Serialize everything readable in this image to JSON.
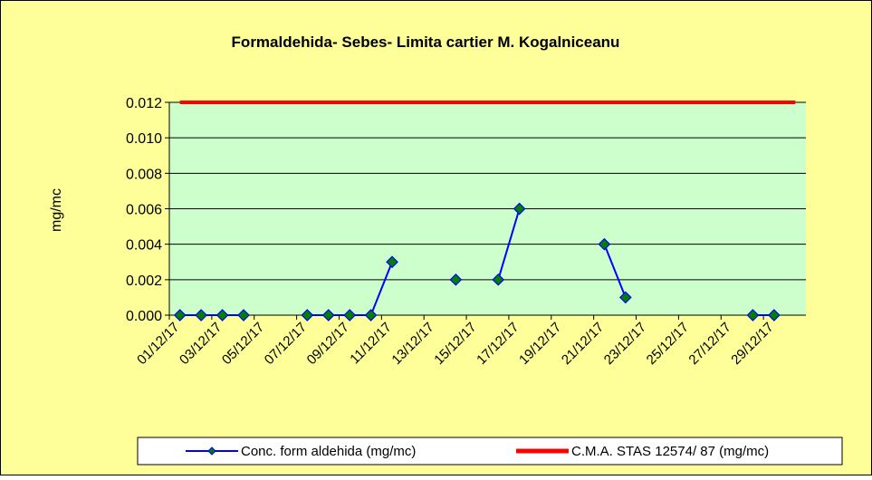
{
  "chart_data": {
    "type": "line",
    "title": "Formaldehida- Sebes- Limita cartier M. Kogalniceanu",
    "y_label": "mg/mc",
    "categories": [
      "01/12/17",
      null,
      "03/12/17",
      null,
      "05/12/17",
      null,
      "07/12/17",
      null,
      "09/12/17",
      null,
      "11/12/17",
      null,
      "13/12/17",
      null,
      "15/12/17",
      null,
      "17/12/17",
      null,
      "19/12/17",
      null,
      "21/12/17",
      null,
      "23/12/17",
      null,
      "25/12/17",
      null,
      "27/12/17",
      null,
      "29/12/17",
      null
    ],
    "series": [
      {
        "name": "Conc. form aldehida (mg/mc)",
        "color": "#0000ff",
        "marker_color": "#008000",
        "values": [
          0,
          0,
          0,
          0,
          null,
          null,
          0,
          0,
          0,
          0,
          0.003,
          null,
          null,
          0.002,
          null,
          0.002,
          0.006,
          null,
          null,
          null,
          0.004,
          0.001,
          null,
          null,
          null,
          null,
          null,
          0,
          0,
          null
        ]
      },
      {
        "name": "C.M.A. STAS 12574/ 87 (mg/mc)",
        "color": "#ff0000",
        "values": [
          0.012,
          0.012,
          0.012,
          0.012,
          0.012,
          0.012,
          0.012,
          0.012,
          0.012,
          0.012,
          0.012,
          0.012,
          0.012,
          0.012,
          0.012,
          0.012,
          0.012,
          0.012,
          0.012,
          0.012,
          0.012,
          0.012,
          0.012,
          0.012,
          0.012,
          0.012,
          0.012,
          0.012,
          0.012,
          0.012
        ]
      }
    ],
    "ylim": [
      0,
      0.012
    ],
    "yticks": [
      {
        "value": 0,
        "label": "0.000"
      },
      {
        "value": 0.002,
        "label": "0.002"
      },
      {
        "value": 0.004,
        "label": "0.004"
      },
      {
        "value": 0.006,
        "label": "0.006"
      },
      {
        "value": 0.008,
        "label": "0.008"
      },
      {
        "value": 0.01,
        "label": "0.010"
      },
      {
        "value": 0.012,
        "label": "0.012"
      }
    ],
    "grid": true,
    "legend": "bottom"
  }
}
